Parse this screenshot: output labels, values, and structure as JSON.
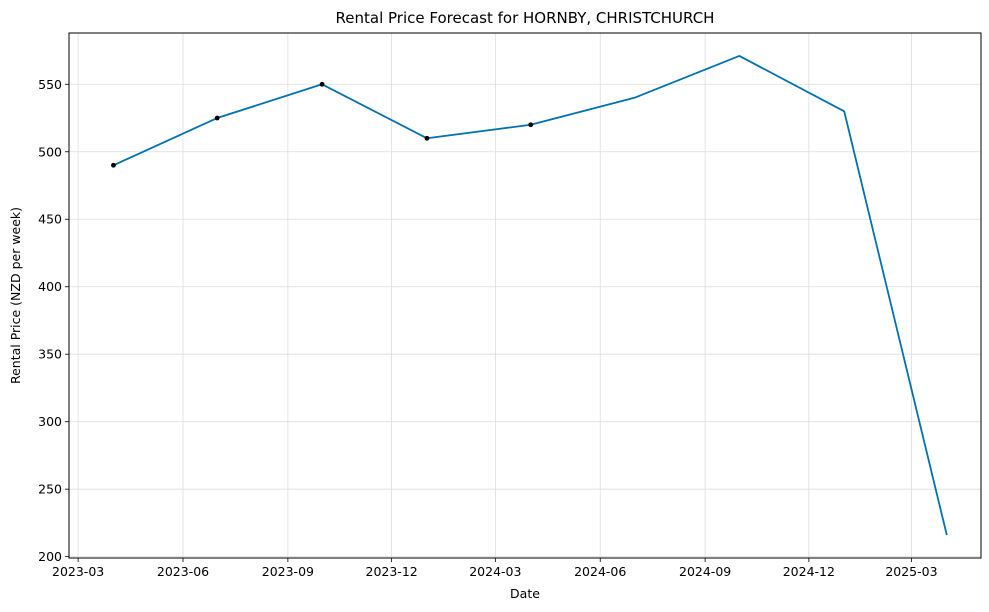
{
  "chart_data": {
    "type": "line",
    "title": "Rental Price Forecast for HORNBY, CHRISTCHURCH",
    "xlabel": "Date",
    "ylabel": "Rental Price (NZD per week)",
    "x_axis_type": "date",
    "xlim": [
      "2023-02-21",
      "2025-05-01"
    ],
    "ylim": [
      199,
      588
    ],
    "grid": true,
    "x_ticks": [
      "2023-03",
      "2023-06",
      "2023-09",
      "2023-12",
      "2024-03",
      "2024-06",
      "2024-09",
      "2024-12",
      "2025-03"
    ],
    "y_ticks": [
      200,
      250,
      300,
      350,
      400,
      450,
      500,
      550
    ],
    "colors": {
      "line": "#0072b2",
      "observed": "#000000",
      "grid": "#dddddd"
    },
    "series": [
      {
        "kind": "forecast-line",
        "x": [
          "2023-04-01",
          "2023-07-01",
          "2023-10-01",
          "2024-01-01",
          "2024-04-01",
          "2024-07-01",
          "2024-10-01",
          "2025-01-01",
          "2025-04-01"
        ],
        "y": [
          490,
          525,
          550,
          510,
          520,
          540,
          571,
          530,
          216
        ]
      },
      {
        "kind": "observed-points",
        "x": [
          "2023-04-01",
          "2023-07-01",
          "2023-10-01",
          "2024-01-01",
          "2024-04-01"
        ],
        "y": [
          490,
          525,
          550,
          510,
          520
        ]
      }
    ]
  }
}
